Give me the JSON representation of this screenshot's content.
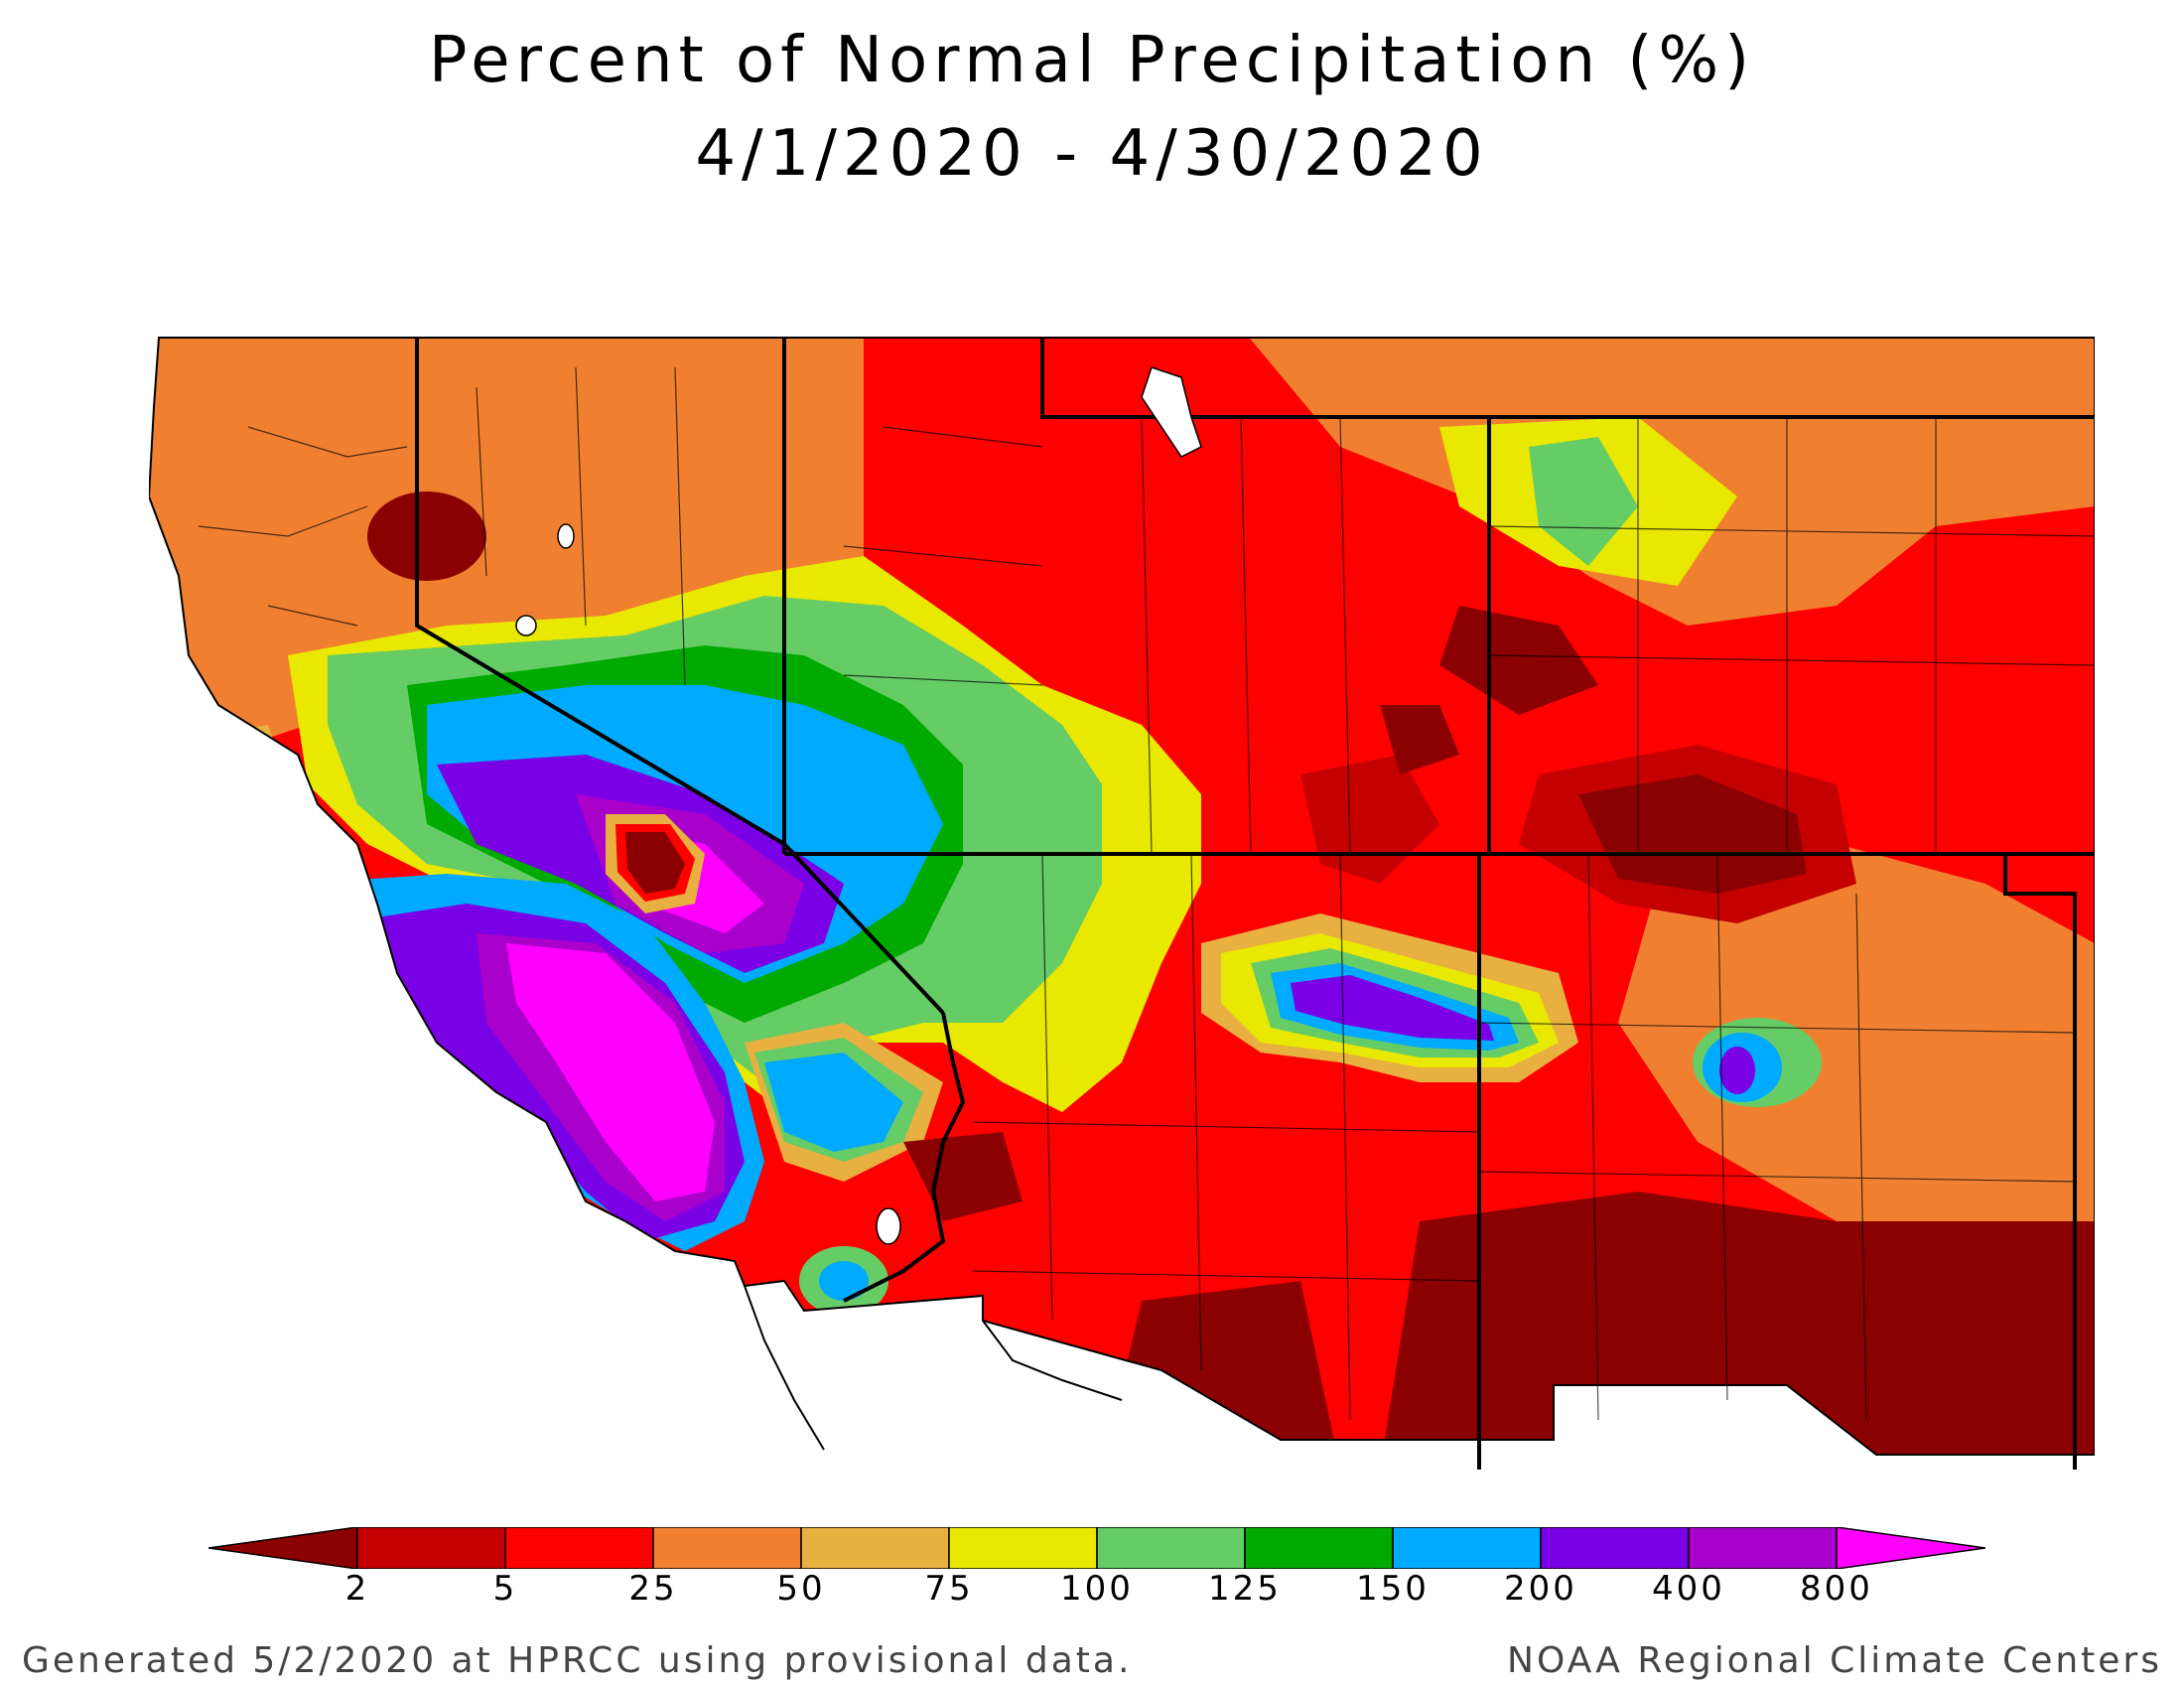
{
  "title": {
    "line1": "Percent of Normal Precipitation (%)",
    "line2": "4/1/2020 - 4/30/2020"
  },
  "map": {
    "region": "Southwestern United States",
    "states_shown": [
      "California",
      "Nevada",
      "Utah",
      "Arizona",
      "Colorado",
      "New Mexico"
    ]
  },
  "legend": {
    "breaks": [
      "2",
      "5",
      "25",
      "50",
      "75",
      "100",
      "125",
      "150",
      "200",
      "400",
      "800"
    ],
    "colors": [
      "#8b0000",
      "#c40000",
      "#ff0000",
      "#f08030",
      "#e8b040",
      "#e8e800",
      "#66cc66",
      "#00aa00",
      "#00aaff",
      "#7a00e6",
      "#aa00cc",
      "#ff00ff"
    ]
  },
  "footer": {
    "left": "Generated 5/2/2020 at HPRCC using provisional data.",
    "right": "NOAA Regional Climate Centers"
  }
}
